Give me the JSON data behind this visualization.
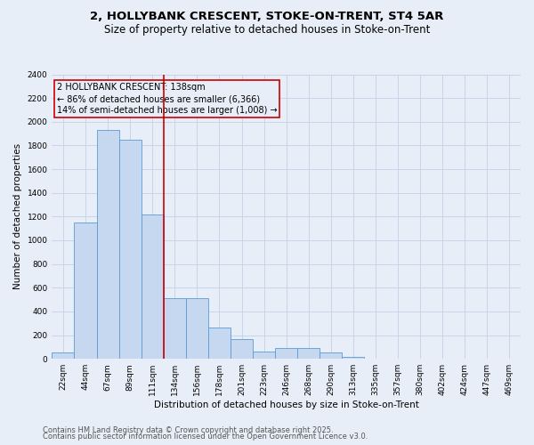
{
  "title_line1": "2, HOLLYBANK CRESCENT, STOKE-ON-TRENT, ST4 5AR",
  "title_line2": "Size of property relative to detached houses in Stoke-on-Trent",
  "xlabel": "Distribution of detached houses by size in Stoke-on-Trent",
  "ylabel": "Number of detached properties",
  "categories": [
    "22sqm",
    "44sqm",
    "67sqm",
    "89sqm",
    "111sqm",
    "134sqm",
    "156sqm",
    "178sqm",
    "201sqm",
    "223sqm",
    "246sqm",
    "268sqm",
    "290sqm",
    "313sqm",
    "335sqm",
    "357sqm",
    "380sqm",
    "402sqm",
    "424sqm",
    "447sqm",
    "469sqm"
  ],
  "values": [
    55,
    1150,
    1930,
    1850,
    1220,
    510,
    510,
    265,
    165,
    60,
    90,
    90,
    55,
    20,
    5,
    5,
    5,
    5,
    5,
    5,
    3
  ],
  "bar_color": "#c5d8f0",
  "bar_edge_color": "#5b9bd5",
  "grid_color": "#c8d4e8",
  "background_color": "#e8eef8",
  "vline_color": "#cc0000",
  "vline_index": 4.5,
  "annotation_text": "2 HOLLYBANK CRESCENT: 138sqm\n← 86% of detached houses are smaller (6,366)\n14% of semi-detached houses are larger (1,008) →",
  "annotation_box_color": "#cc0000",
  "ylim": [
    0,
    2400
  ],
  "yticks": [
    0,
    200,
    400,
    600,
    800,
    1000,
    1200,
    1400,
    1600,
    1800,
    2000,
    2200,
    2400
  ],
  "footer_line1": "Contains HM Land Registry data © Crown copyright and database right 2025.",
  "footer_line2": "Contains public sector information licensed under the Open Government Licence v3.0.",
  "title_fontsize": 9.5,
  "subtitle_fontsize": 8.5,
  "axis_label_fontsize": 7.5,
  "tick_fontsize": 6.5,
  "annotation_fontsize": 7,
  "footer_fontsize": 6
}
